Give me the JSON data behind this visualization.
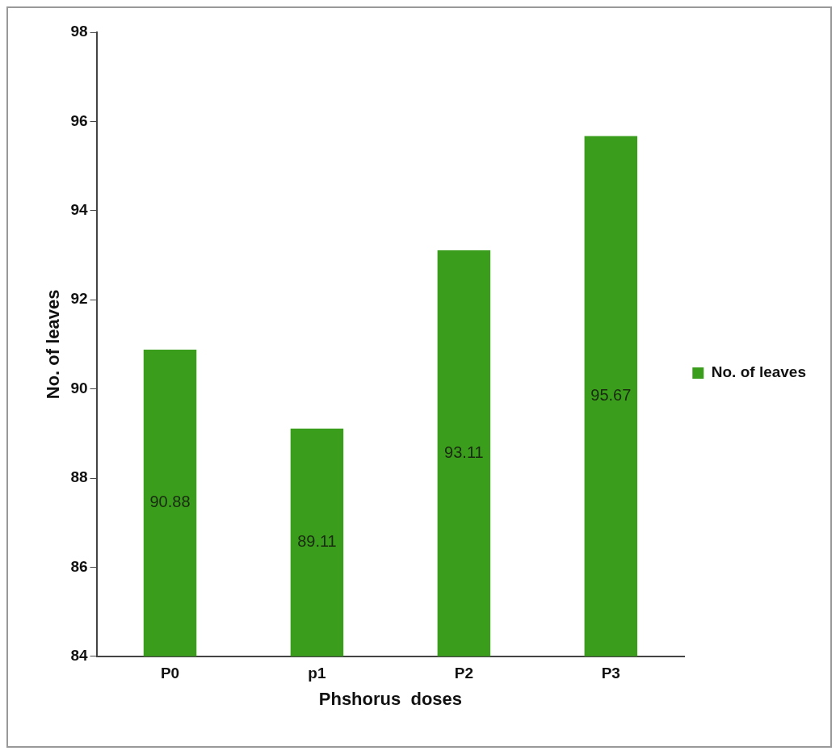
{
  "chart_data": {
    "type": "bar",
    "xlabel": "Phshorus  doses",
    "ylabel": "No. of leaves",
    "categories": [
      "P0",
      "p1",
      "P2",
      "P3"
    ],
    "series": [
      {
        "name": "No. of leaves",
        "color": "#3a9e1c",
        "values": [
          90.88,
          89.11,
          93.11,
          95.67
        ]
      }
    ],
    "ylim": [
      84,
      98
    ],
    "yticks": [
      84,
      86,
      88,
      90,
      92,
      94,
      96,
      98
    ],
    "grid": false,
    "legend": "right",
    "data_labels": true
  }
}
